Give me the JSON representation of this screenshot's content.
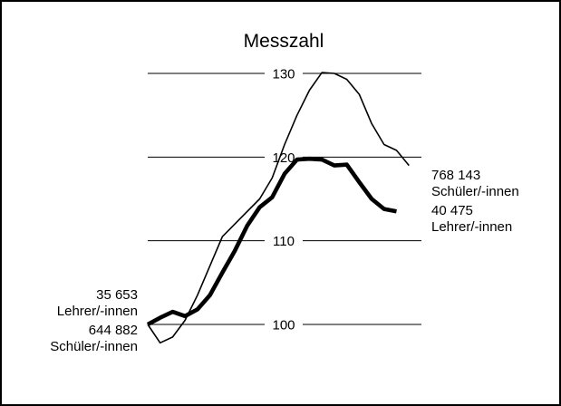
{
  "chart_data": {
    "type": "line",
    "title": "Messzahl",
    "xlabel": "",
    "ylabel": "",
    "ylim": [
      100,
      130
    ],
    "yticks": [
      100,
      110,
      120,
      130
    ],
    "grid": true,
    "x": [
      1,
      2,
      3,
      4,
      5,
      6,
      7,
      8,
      9,
      10,
      11,
      12,
      13,
      14,
      15,
      16,
      17,
      18,
      19,
      20,
      21,
      22,
      23
    ],
    "series": [
      {
        "name": "Schüler/-innen",
        "values": [
          100.0,
          97.8,
          98.5,
          100.5,
          103.5,
          107.0,
          110.5,
          112.0,
          113.5,
          115.0,
          117.5,
          121.5,
          125.0,
          128.0,
          130.1,
          130.0,
          129.3,
          127.5,
          124.0,
          121.5,
          120.8,
          119.0,
          null
        ],
        "start_label": [
          "644 882",
          "Schüler/-innen"
        ],
        "end_label": [
          "768 143",
          "Schüler/-innen"
        ]
      },
      {
        "name": "Lehrer/-innen",
        "values": [
          100.0,
          100.8,
          101.5,
          101.0,
          101.8,
          103.5,
          106.2,
          108.8,
          111.8,
          114.0,
          115.2,
          118.0,
          119.7,
          119.8,
          119.7,
          119.0,
          119.1,
          117.0,
          115.0,
          113.8,
          113.5,
          null,
          null
        ],
        "start_label": [
          "35 653",
          "Lehrer/-innen"
        ],
        "end_label": [
          "40 475",
          "Lehrer/-innen"
        ]
      }
    ]
  }
}
